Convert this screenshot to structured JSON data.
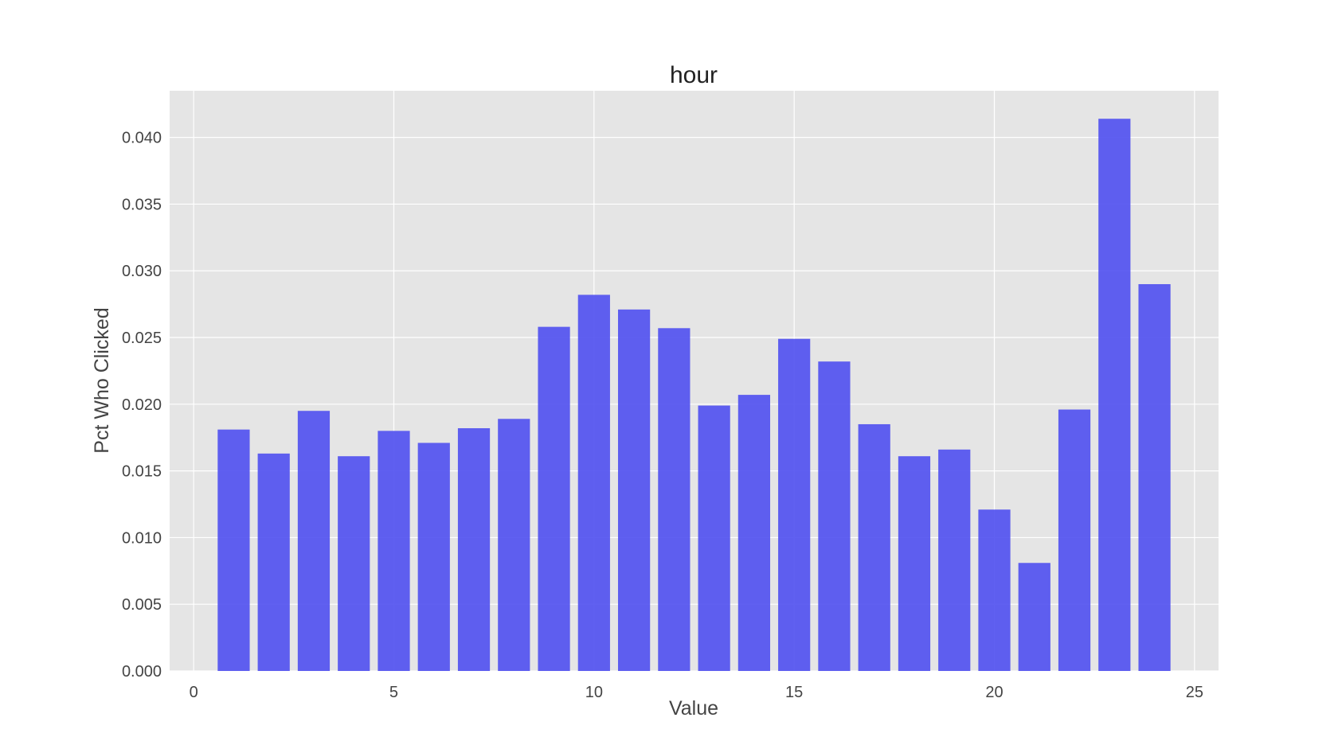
{
  "chart_data": {
    "type": "bar",
    "title": "hour",
    "xlabel": "Value",
    "ylabel": "Pct Who Clicked",
    "x": [
      1,
      2,
      3,
      4,
      5,
      6,
      7,
      8,
      9,
      10,
      11,
      12,
      13,
      14,
      15,
      16,
      17,
      18,
      19,
      20,
      21,
      22,
      23,
      24
    ],
    "values": [
      0.0181,
      0.0163,
      0.0195,
      0.0161,
      0.018,
      0.0171,
      0.0182,
      0.0189,
      0.0258,
      0.0282,
      0.0271,
      0.0257,
      0.0199,
      0.0207,
      0.0249,
      0.0232,
      0.0185,
      0.0161,
      0.0166,
      0.0121,
      0.0081,
      0.0196,
      0.0414,
      0.029
    ],
    "xlim": [
      -0.6,
      25.6
    ],
    "ylim": [
      0,
      0.0435
    ],
    "xticks": [
      "0",
      "5",
      "10",
      "15",
      "20",
      "25"
    ],
    "yticks": [
      "0.000",
      "0.005",
      "0.010",
      "0.015",
      "0.020",
      "0.025",
      "0.030",
      "0.035",
      "0.040"
    ],
    "grid": true,
    "colors": {
      "bar": "#4f4ff0",
      "plot_bg": "#e5e5e5",
      "grid": "#ffffff"
    }
  }
}
